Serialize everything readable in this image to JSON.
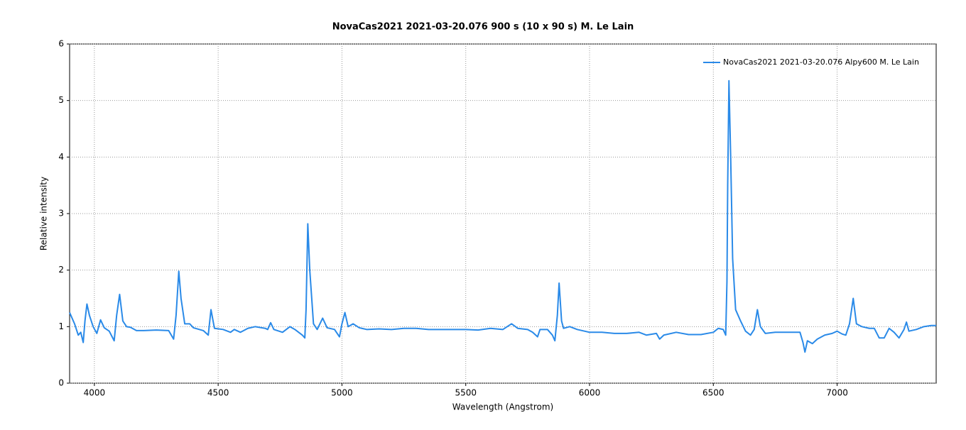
{
  "chart_data": {
    "type": "line",
    "title": "NovaCas2021  2021-03-20.076   900 s (10 x 90 s)   M. Le Lain",
    "xlabel": "Wavelength (Angstrom)",
    "ylabel": "Relative intensity",
    "x": [
      3900,
      3920,
      3935,
      3945,
      3955,
      3962,
      3970,
      3980,
      3995,
      4010,
      4025,
      4040,
      4060,
      4080,
      4090,
      4102,
      4115,
      4130,
      4145,
      4170,
      4200,
      4250,
      4300,
      4320,
      4330,
      4341,
      4350,
      4365,
      4385,
      4400,
      4440,
      4460,
      4471,
      4485,
      4520,
      4550,
      4565,
      4590,
      4620,
      4650,
      4690,
      4700,
      4712,
      4725,
      4760,
      4790,
      4810,
      4840,
      4850,
      4855,
      4862,
      4870,
      4885,
      4900,
      4922,
      4940,
      4970,
      4990,
      5000,
      5012,
      5025,
      5045,
      5070,
      5100,
      5150,
      5200,
      5250,
      5300,
      5350,
      5400,
      5450,
      5500,
      5550,
      5600,
      5650,
      5685,
      5710,
      5750,
      5770,
      5790,
      5800,
      5830,
      5850,
      5860,
      5870,
      5877,
      5887,
      5895,
      5920,
      5950,
      6000,
      6050,
      6100,
      6150,
      6200,
      6230,
      6270,
      6283,
      6300,
      6350,
      6400,
      6450,
      6500,
      6520,
      6540,
      6550,
      6555,
      6558,
      6563,
      6570,
      6578,
      6590,
      6610,
      6630,
      6650,
      6665,
      6678,
      6690,
      6710,
      6750,
      6800,
      6850,
      6862,
      6870,
      6880,
      6900,
      6920,
      6950,
      6980,
      7000,
      7020,
      7035,
      7050,
      7065,
      7078,
      7100,
      7130,
      7150,
      7170,
      7190,
      7210,
      7230,
      7250,
      7270,
      7280,
      7290,
      7320,
      7350,
      7380,
      7400
    ],
    "series": [
      {
        "name": "NovaCas2021  2021-03-20.076 Alpy600  M. Le Lain",
        "color": "#2a8ae8",
        "values": [
          1.25,
          1.05,
          0.85,
          0.9,
          0.72,
          1.1,
          1.4,
          1.2,
          1.0,
          0.88,
          1.12,
          0.98,
          0.92,
          0.75,
          1.2,
          1.57,
          1.1,
          1.0,
          0.99,
          0.93,
          0.93,
          0.94,
          0.93,
          0.78,
          1.2,
          1.98,
          1.5,
          1.05,
          1.05,
          0.98,
          0.93,
          0.85,
          1.3,
          0.97,
          0.95,
          0.9,
          0.95,
          0.9,
          0.97,
          1.0,
          0.97,
          0.95,
          1.07,
          0.95,
          0.9,
          1.0,
          0.95,
          0.85,
          0.8,
          1.3,
          2.82,
          2.0,
          1.05,
          0.95,
          1.15,
          0.98,
          0.95,
          0.82,
          1.05,
          1.25,
          1.0,
          1.05,
          0.98,
          0.95,
          0.96,
          0.95,
          0.97,
          0.97,
          0.95,
          0.95,
          0.95,
          0.95,
          0.94,
          0.97,
          0.95,
          1.05,
          0.97,
          0.95,
          0.9,
          0.82,
          0.95,
          0.95,
          0.85,
          0.75,
          1.2,
          1.77,
          1.1,
          0.97,
          1.0,
          0.95,
          0.9,
          0.9,
          0.88,
          0.88,
          0.9,
          0.85,
          0.88,
          0.78,
          0.85,
          0.9,
          0.86,
          0.86,
          0.9,
          0.97,
          0.95,
          0.85,
          1.8,
          3.5,
          5.35,
          4.0,
          2.2,
          1.3,
          1.1,
          0.92,
          0.85,
          0.95,
          1.3,
          1.0,
          0.88,
          0.9,
          0.9,
          0.9,
          0.72,
          0.55,
          0.75,
          0.7,
          0.78,
          0.85,
          0.88,
          0.92,
          0.87,
          0.85,
          1.05,
          1.5,
          1.05,
          1.0,
          0.97,
          0.97,
          0.8,
          0.8,
          0.97,
          0.9,
          0.8,
          0.95,
          1.08,
          0.92,
          0.95,
          1.0,
          1.02,
          1.02
        ]
      }
    ],
    "xlim": [
      3900,
      7400
    ],
    "ylim": [
      0,
      6
    ],
    "xticks": [
      4000,
      4500,
      5000,
      5500,
      6000,
      6500,
      7000
    ],
    "yticks": [
      0,
      1,
      2,
      3,
      4,
      5,
      6
    ],
    "grid": true,
    "legend": "upper right"
  }
}
